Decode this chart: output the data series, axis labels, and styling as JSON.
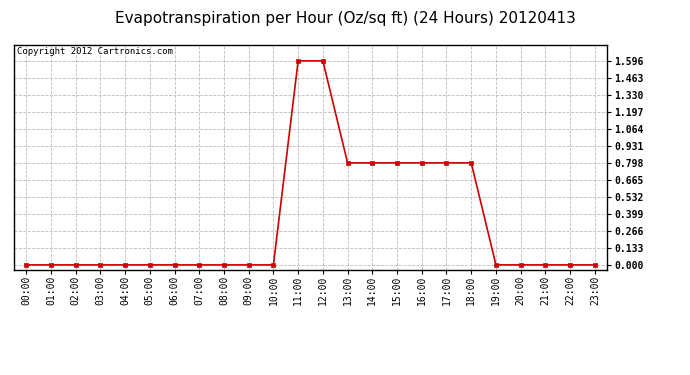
{
  "title": "Evapotranspiration per Hour (Oz/sq ft) (24 Hours) 20120413",
  "copyright_text": "Copyright 2012 Cartronics.com",
  "hours": [
    0,
    1,
    2,
    3,
    4,
    5,
    6,
    7,
    8,
    9,
    10,
    11,
    12,
    13,
    14,
    15,
    16,
    17,
    18,
    19,
    20,
    21,
    22,
    23
  ],
  "values": [
    0.0,
    0.0,
    0.0,
    0.0,
    0.0,
    0.0,
    0.0,
    0.0,
    0.0,
    0.0,
    0.0,
    1.596,
    1.596,
    0.798,
    0.798,
    0.798,
    0.798,
    0.798,
    0.798,
    0.0,
    0.0,
    0.0,
    0.0,
    0.0
  ],
  "line_color": "#cc0000",
  "marker": "s",
  "marker_size": 3,
  "background_color": "#ffffff",
  "plot_bg_color": "#ffffff",
  "grid_color": "#bbbbbb",
  "title_fontsize": 11,
  "y_tick_values": [
    0.0,
    0.133,
    0.266,
    0.399,
    0.532,
    0.665,
    0.798,
    0.931,
    1.064,
    1.197,
    1.33,
    1.463,
    1.596
  ],
  "ylim": [
    -0.04,
    1.72
  ],
  "xlim": [
    -0.5,
    23.5
  ],
  "tick_label_fontsize": 7,
  "title_color": "#000000",
  "border_color": "#000000",
  "copyright_fontsize": 6.5
}
